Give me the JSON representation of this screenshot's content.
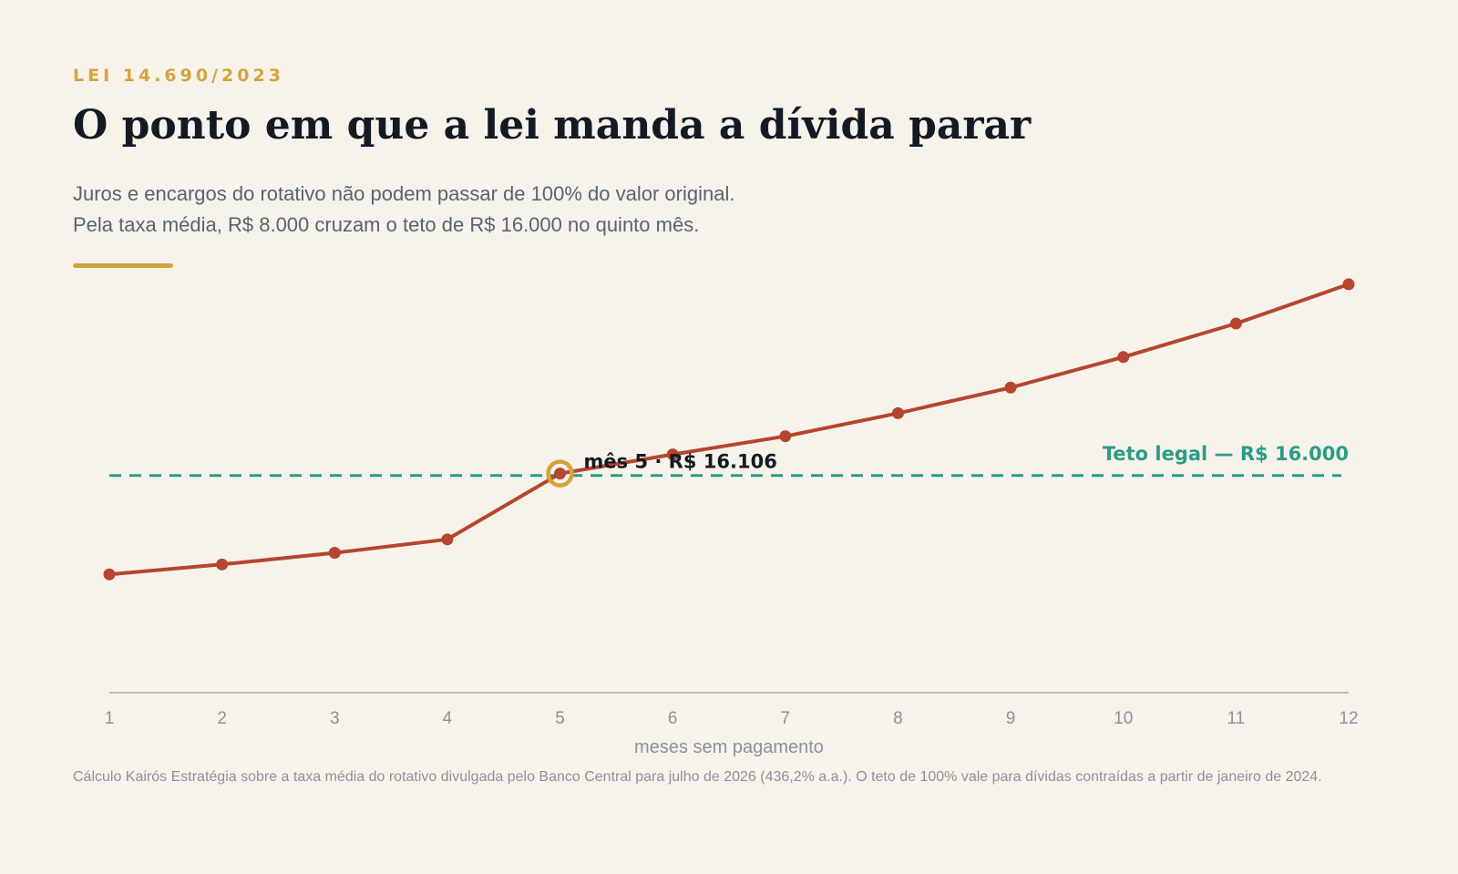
{
  "header": {
    "kicker": "LEI 14.690/2023",
    "title": "O ponto em que a lei manda a dívida parar",
    "subtitle_line1": "Juros e encargos do rotativo não podem passar de 100% do valor original.",
    "subtitle_line2": "Pela taxa média, R$ 8.000 cruzam o teto de R$ 16.000 no quinto mês."
  },
  "colors": {
    "background": "#f7f3ea",
    "accent": "#d4a43c",
    "series": "#b5452f",
    "threshold": "#2a9d84",
    "axis": "#c9bca4",
    "tick_text": "#8c9098"
  },
  "chart_data": {
    "type": "line",
    "x": [
      1,
      2,
      3,
      4,
      5,
      6,
      7,
      8,
      9,
      10,
      11,
      12
    ],
    "series": [
      {
        "values": [
          10720,
          11250,
          11870,
          12590,
          16106,
          17130,
          18100,
          19330,
          20700,
          22330,
          24120,
          26220
        ]
      }
    ],
    "xlabel": "meses sem pagamento",
    "ylabel": "",
    "x_tick_labels": [
      "1",
      "2",
      "3",
      "4",
      "5",
      "6",
      "7",
      "8",
      "9",
      "10",
      "11",
      "12"
    ],
    "xlim": [
      1,
      12
    ],
    "ylim": [
      4400,
      26800
    ],
    "grid": false,
    "legend": "none",
    "threshold": {
      "value": 16000,
      "label": "Teto legal — R$ 16.000"
    },
    "highlight": {
      "x": 5,
      "label": "mês 5 · R$ 16.106"
    }
  },
  "footer": {
    "note": "Cálculo Kairós Estratégia sobre a taxa média do rotativo divulgada pelo Banco Central para julho de 2026 (436,2% a.a.). O teto de 100% vale para dívidas contraídas a partir de janeiro de 2024."
  }
}
